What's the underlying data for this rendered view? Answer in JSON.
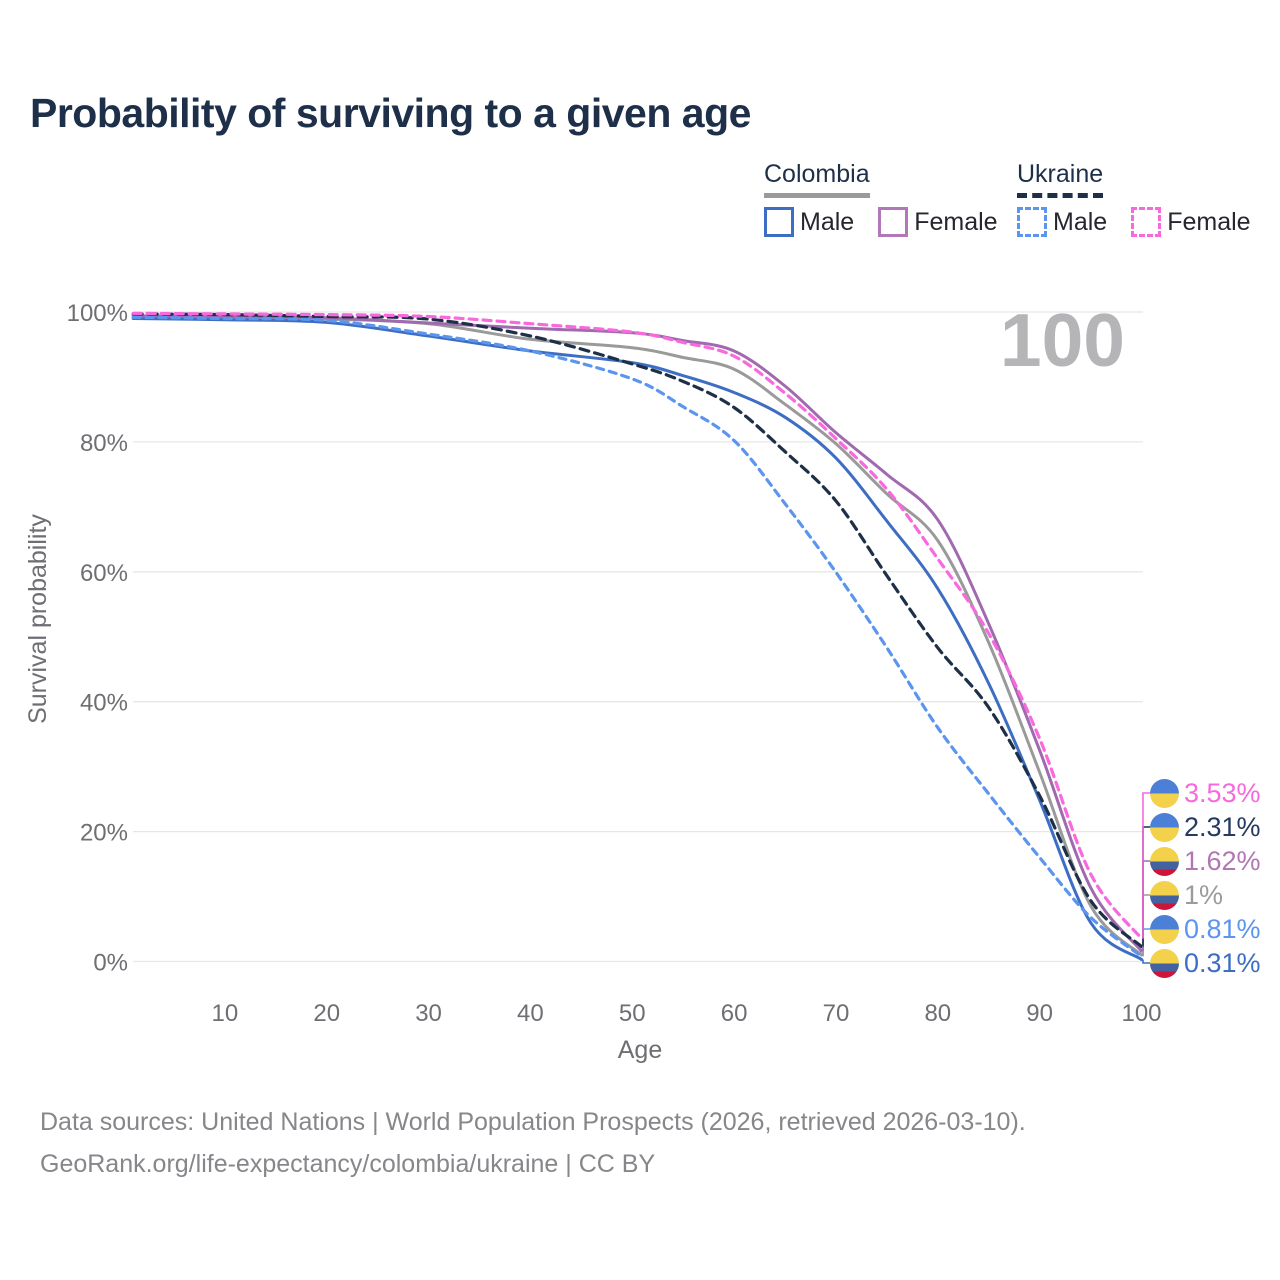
{
  "title": "Probability of surviving to a given age",
  "watermark": "100",
  "legend": {
    "groups": [
      {
        "label": "Colombia",
        "underline_style": "solid",
        "underline_color": "#9a9a9a",
        "items": [
          {
            "label": "Male",
            "color": "#3d6ec3",
            "dashed": false
          },
          {
            "label": "Female",
            "color": "#b177b8",
            "dashed": false
          }
        ]
      },
      {
        "label": "Ukraine",
        "underline_style": "dashed",
        "underline_color": "#1e3048",
        "items": [
          {
            "label": "Male",
            "color": "#5c95f0",
            "dashed": true
          },
          {
            "label": "Female",
            "color": "#f969de",
            "dashed": true
          }
        ]
      }
    ]
  },
  "chart_data": {
    "type": "line",
    "title": "Probability of surviving to a given age",
    "xlabel": "Age",
    "ylabel": "Survival probability",
    "xlim": [
      1,
      100
    ],
    "ylim": [
      0,
      100
    ],
    "grid": "horizontal-only",
    "x_ticks": [
      10,
      20,
      30,
      40,
      50,
      60,
      70,
      80,
      90,
      100
    ],
    "y_ticks": [
      "0%",
      "20%",
      "40%",
      "60%",
      "80%",
      "100%"
    ],
    "x": [
      1,
      10,
      20,
      30,
      40,
      50,
      55,
      60,
      65,
      70,
      75,
      80,
      85,
      90,
      95,
      100
    ],
    "series": [
      {
        "name": "Colombia — Both sexes",
        "country": "colombia",
        "color": "#9a9a9a",
        "dashed": false,
        "end_label": "1%",
        "label_color": "#9b9b9b",
        "values": [
          99.3,
          99.1,
          98.9,
          98.2,
          95.8,
          94.5,
          93.0,
          91.2,
          85.8,
          79.7,
          72.0,
          64.8,
          49.1,
          29.1,
          8.6,
          1.0
        ]
      },
      {
        "name": "Colombia — Male",
        "country": "colombia",
        "color": "#3d6ec3",
        "dashed": false,
        "end_label": "0.31%",
        "label_color": "#3d6ec3",
        "values": [
          99.0,
          98.8,
          98.4,
          96.3,
          94.0,
          92.2,
          90.2,
          87.6,
          83.8,
          77.5,
          67.8,
          57.4,
          42.8,
          24.8,
          6.0,
          0.31
        ]
      },
      {
        "name": "Colombia — Female",
        "country": "colombia",
        "color": "#a169ae",
        "dashed": false,
        "end_label": "1.62%",
        "label_color": "#b077b3",
        "values": [
          99.4,
          99.3,
          99.1,
          98.3,
          97.5,
          96.8,
          95.6,
          94.0,
          88.6,
          81.4,
          75.0,
          68.0,
          52.0,
          32.5,
          11.4,
          1.62
        ]
      },
      {
        "name": "Ukraine — Male",
        "country": "ukraine",
        "color": "#5c95f0",
        "dashed": true,
        "dash": "7 6",
        "end_label": "0.81%",
        "label_color": "#5c95f0",
        "values": [
          99.2,
          99.0,
          98.7,
          96.6,
          94.0,
          89.7,
          85.4,
          80.2,
          70.5,
          59.9,
          48.3,
          36.0,
          25.8,
          16.0,
          6.8,
          0.81
        ]
      },
      {
        "name": "Ukraine — Both sexes",
        "country": "ukraine",
        "color": "#1e3048",
        "dashed": true,
        "dash": "9 6",
        "end_label": "2.31%",
        "label_color": "#253a5e",
        "values": [
          99.7,
          99.6,
          99.3,
          98.9,
          96.3,
          92.0,
          89.3,
          85.3,
          78.5,
          70.9,
          59.4,
          48.3,
          39.1,
          25.5,
          9.4,
          2.31
        ]
      },
      {
        "name": "Ukraine — Female",
        "country": "ukraine",
        "color": "#f969de",
        "dashed": true,
        "dash": "8 6",
        "end_label": "3.53%",
        "label_color": "#f969de",
        "values": [
          99.8,
          99.7,
          99.6,
          99.3,
          98.2,
          96.9,
          95.3,
          93.2,
          87.5,
          80.5,
          72.7,
          62.0,
          50.5,
          34.3,
          13.5,
          3.53
        ]
      }
    ]
  },
  "footer": {
    "line1": "Data sources: United Nations | World Population Prospects (2026, retrieved 2026-03-10).",
    "line2": "GeoRank.org/life-expectancy/colombia/ukraine | CC BY"
  }
}
